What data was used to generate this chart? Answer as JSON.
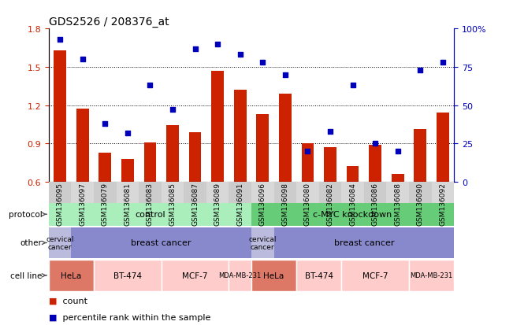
{
  "title": "GDS2526 / 208376_at",
  "samples": [
    "GSM136095",
    "GSM136097",
    "GSM136079",
    "GSM136081",
    "GSM136083",
    "GSM136085",
    "GSM136087",
    "GSM136089",
    "GSM136091",
    "GSM136096",
    "GSM136098",
    "GSM136080",
    "GSM136082",
    "GSM136084",
    "GSM136086",
    "GSM136088",
    "GSM136090",
    "GSM136092"
  ],
  "bar_values": [
    1.63,
    1.17,
    0.83,
    0.78,
    0.91,
    1.04,
    0.99,
    1.47,
    1.32,
    1.13,
    1.29,
    0.9,
    0.87,
    0.72,
    0.89,
    0.66,
    1.01,
    1.14
  ],
  "dot_values": [
    93,
    80,
    38,
    32,
    63,
    47,
    87,
    90,
    83,
    78,
    70,
    20,
    33,
    63,
    25,
    20,
    73,
    78
  ],
  "ylim_left": [
    0.6,
    1.8
  ],
  "ylim_right": [
    0,
    100
  ],
  "yticks_left": [
    0.6,
    0.9,
    1.2,
    1.5,
    1.8
  ],
  "yticks_right": [
    0,
    25,
    50,
    75,
    100
  ],
  "ytick_labels_right": [
    "0",
    "25",
    "50",
    "75",
    "100%"
  ],
  "bar_color": "#cc2200",
  "dot_color": "#0000bb",
  "bar_baseline": 0.6,
  "dotted_lines": [
    0.9,
    1.2,
    1.5
  ],
  "protocol_color_control": "#aaeebb",
  "protocol_color_cmyc": "#66cc77",
  "cell_line_groups": [
    {
      "label": "HeLa",
      "start": 0,
      "end": 2,
      "color": "#dd7766"
    },
    {
      "label": "BT-474",
      "start": 2,
      "end": 5,
      "color": "#ffcccc"
    },
    {
      "label": "MCF-7",
      "start": 5,
      "end": 8,
      "color": "#ffcccc"
    },
    {
      "label": "MDA-MB-231",
      "start": 8,
      "end": 9,
      "color": "#ffcccc"
    },
    {
      "label": "HeLa",
      "start": 9,
      "end": 11,
      "color": "#dd7766"
    },
    {
      "label": "BT-474",
      "start": 11,
      "end": 13,
      "color": "#ffcccc"
    },
    {
      "label": "MCF-7",
      "start": 13,
      "end": 16,
      "color": "#ffcccc"
    },
    {
      "label": "MDA-MB-231",
      "start": 16,
      "end": 18,
      "color": "#ffcccc"
    }
  ],
  "legend_count_color": "#cc2200",
  "legend_dot_color": "#0000bb",
  "bg_color": "#ffffff",
  "tick_label_color_left": "#cc2200",
  "tick_label_color_right": "#0000bb",
  "xtick_bg_color": "#cccccc",
  "other_cervical_color": "#bbbbdd",
  "other_breast_color": "#8888cc"
}
